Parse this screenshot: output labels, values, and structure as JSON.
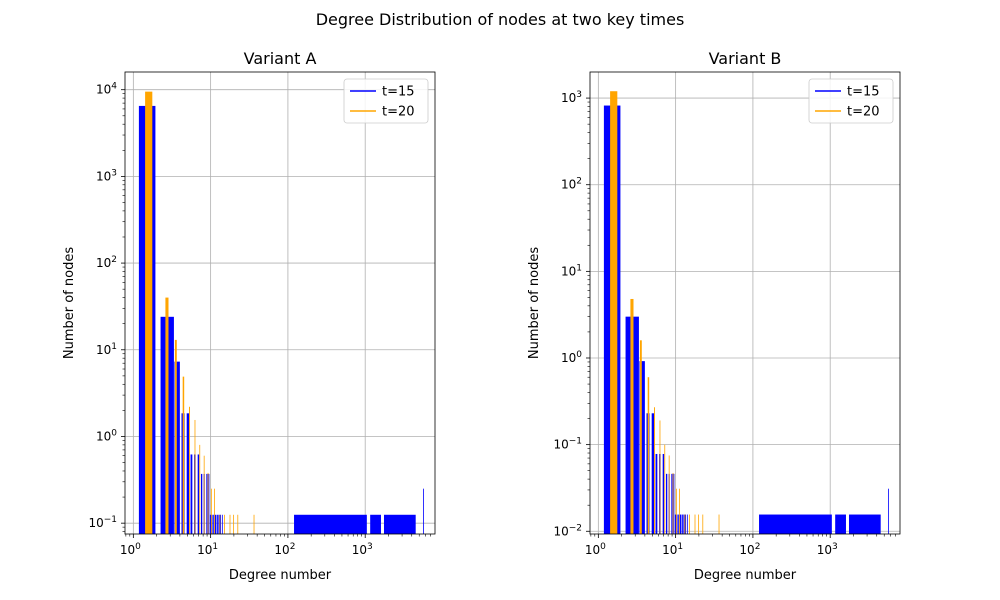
{
  "figure": {
    "title": "Degree Distribution of nodes at two key times"
  },
  "colors": {
    "t15": "#0000ff",
    "t20": "#ffa500",
    "grid": "#b0b0b0"
  },
  "chart_data": [
    {
      "type": "bar",
      "title": "Variant A",
      "xlabel": "Degree number",
      "ylabel": "Number of nodes",
      "xscale": "log",
      "yscale": "log",
      "xlim": [
        0.78,
        8000
      ],
      "ylim": [
        0.075,
        16000
      ],
      "xticks": [
        {
          "v": 1,
          "label": "10",
          "exp": "0"
        },
        {
          "v": 10,
          "label": "10",
          "exp": "1"
        },
        {
          "v": 100,
          "label": "10",
          "exp": "2"
        },
        {
          "v": 1000,
          "label": "10",
          "exp": "3"
        }
      ],
      "yticks": [
        {
          "v": 0.1,
          "label": "10",
          "exp": "−1"
        },
        {
          "v": 1,
          "label": "10",
          "exp": "0"
        },
        {
          "v": 10,
          "label": "10",
          "exp": "1"
        },
        {
          "v": 100,
          "label": "10",
          "exp": "2"
        },
        {
          "v": 1000,
          "label": "10",
          "exp": "3"
        },
        {
          "v": 10000,
          "label": "10",
          "exp": "4"
        }
      ],
      "grid": true,
      "legend_position": "top-right",
      "series": [
        {
          "name": "t=15",
          "color": "#0000ff",
          "bars": [
            [
              1.18,
              1.93,
              6500
            ],
            [
              2.25,
              2.7,
              24
            ],
            [
              2.8,
              3.35,
              24
            ],
            [
              3.4,
              4.0,
              7.3
            ],
            [
              4.2,
              4.6,
              1.85
            ],
            [
              4.9,
              5.3,
              1.85
            ],
            [
              5.5,
              5.8,
              0.62
            ],
            [
              6.1,
              6.4,
              0.62
            ],
            [
              6.8,
              7.1,
              0.62
            ],
            [
              7.5,
              7.8,
              0.37
            ],
            [
              8.1,
              8.4,
              0.37
            ],
            [
              8.8,
              9.1,
              0.37
            ],
            [
              9.4,
              9.6,
              0.37
            ],
            [
              9.8,
              10.1,
              0.125
            ],
            [
              10.3,
              10.6,
              0.125
            ],
            [
              10.8,
              11.2,
              0.125
            ],
            [
              11.4,
              11.8,
              0.125
            ],
            [
              12.0,
              12.4,
              0.125
            ],
            [
              12.6,
              13.0,
              0.125
            ],
            [
              13.2,
              13.6,
              0.125
            ],
            [
              14.0,
              14.3,
              0.125
            ],
            [
              120,
              1050,
              0.125
            ],
            [
              1160,
              1600,
              0.125
            ],
            [
              1750,
              4500,
              0.125
            ],
            [
              5600,
              5700,
              0.25
            ]
          ]
        },
        {
          "name": "t=20",
          "color": "#ffa500",
          "bars": [
            [
              1.42,
              1.76,
              9500
            ],
            [
              2.6,
              2.85,
              40
            ],
            [
              3.45,
              3.65,
              13
            ],
            [
              4.35,
              4.55,
              4.9
            ],
            [
              5.25,
              5.4,
              2.2
            ],
            [
              6.2,
              6.33,
              1.55
            ],
            [
              7.15,
              7.25,
              0.8
            ],
            [
              8.15,
              8.25,
              0.6
            ],
            [
              9.15,
              9.25,
              0.38
            ],
            [
              10.1,
              10.2,
              0.25
            ],
            [
              11.1,
              11.2,
              0.25
            ],
            [
              13.0,
              13.1,
              0.125
            ],
            [
              14.9,
              15.0,
              0.125
            ],
            [
              17.6,
              17.7,
              0.125
            ],
            [
              19.6,
              19.7,
              0.125
            ],
            [
              22.2,
              22.3,
              0.125
            ],
            [
              36.0,
              36.2,
              0.125
            ]
          ]
        }
      ]
    },
    {
      "type": "bar",
      "title": "Variant B",
      "xlabel": "Degree number",
      "ylabel": "Number of nodes",
      "xscale": "log",
      "yscale": "log",
      "xlim": [
        0.78,
        8000
      ],
      "ylim": [
        0.0093,
        2000
      ],
      "xticks": [
        {
          "v": 1,
          "label": "10",
          "exp": "0"
        },
        {
          "v": 10,
          "label": "10",
          "exp": "1"
        },
        {
          "v": 100,
          "label": "10",
          "exp": "2"
        },
        {
          "v": 1000,
          "label": "10",
          "exp": "3"
        }
      ],
      "yticks": [
        {
          "v": 0.01,
          "label": "10",
          "exp": "−2"
        },
        {
          "v": 0.1,
          "label": "10",
          "exp": "−1"
        },
        {
          "v": 1,
          "label": "10",
          "exp": "0"
        },
        {
          "v": 10,
          "label": "10",
          "exp": "1"
        },
        {
          "v": 100,
          "label": "10",
          "exp": "2"
        },
        {
          "v": 1000,
          "label": "10",
          "exp": "3"
        }
      ],
      "grid": true,
      "legend_position": "top-right",
      "series": [
        {
          "name": "t=15",
          "color": "#0000ff",
          "bars": [
            [
              1.18,
              1.93,
              820
            ],
            [
              2.25,
              2.7,
              3.0
            ],
            [
              2.8,
              3.35,
              3.0
            ],
            [
              3.4,
              4.0,
              0.92
            ],
            [
              4.2,
              4.6,
              0.23
            ],
            [
              4.9,
              5.3,
              0.23
            ],
            [
              5.5,
              5.8,
              0.078
            ],
            [
              6.1,
              6.4,
              0.078
            ],
            [
              6.8,
              7.1,
              0.078
            ],
            [
              7.5,
              7.8,
              0.046
            ],
            [
              8.1,
              8.4,
              0.046
            ],
            [
              8.8,
              9.1,
              0.046
            ],
            [
              9.4,
              9.6,
              0.046
            ],
            [
              9.8,
              10.1,
              0.0156
            ],
            [
              10.3,
              10.6,
              0.0156
            ],
            [
              10.8,
              11.2,
              0.0156
            ],
            [
              11.4,
              11.8,
              0.0156
            ],
            [
              12.0,
              12.4,
              0.0156
            ],
            [
              12.6,
              13.0,
              0.0156
            ],
            [
              13.2,
              13.6,
              0.0156
            ],
            [
              14.0,
              14.3,
              0.0156
            ],
            [
              120,
              1050,
              0.0156
            ],
            [
              1160,
              1600,
              0.0156
            ],
            [
              1750,
              4500,
              0.0156
            ],
            [
              5600,
              5700,
              0.031
            ]
          ]
        },
        {
          "name": "t=20",
          "color": "#ffa500",
          "bars": [
            [
              1.42,
              1.76,
              1200
            ],
            [
              2.6,
              2.85,
              4.8
            ],
            [
              3.45,
              3.65,
              1.6
            ],
            [
              4.35,
              4.55,
              0.6
            ],
            [
              5.25,
              5.4,
              0.27
            ],
            [
              6.2,
              6.33,
              0.19
            ],
            [
              7.15,
              7.25,
              0.1
            ],
            [
              8.15,
              8.25,
              0.075
            ],
            [
              9.15,
              9.25,
              0.047
            ],
            [
              10.1,
              10.2,
              0.031
            ],
            [
              11.1,
              11.2,
              0.031
            ],
            [
              13.0,
              13.1,
              0.0156
            ],
            [
              14.9,
              15.0,
              0.0156
            ],
            [
              17.6,
              17.7,
              0.0156
            ],
            [
              19.6,
              19.7,
              0.0156
            ],
            [
              22.2,
              22.3,
              0.0156
            ],
            [
              36.0,
              36.2,
              0.0156
            ]
          ]
        }
      ]
    }
  ]
}
